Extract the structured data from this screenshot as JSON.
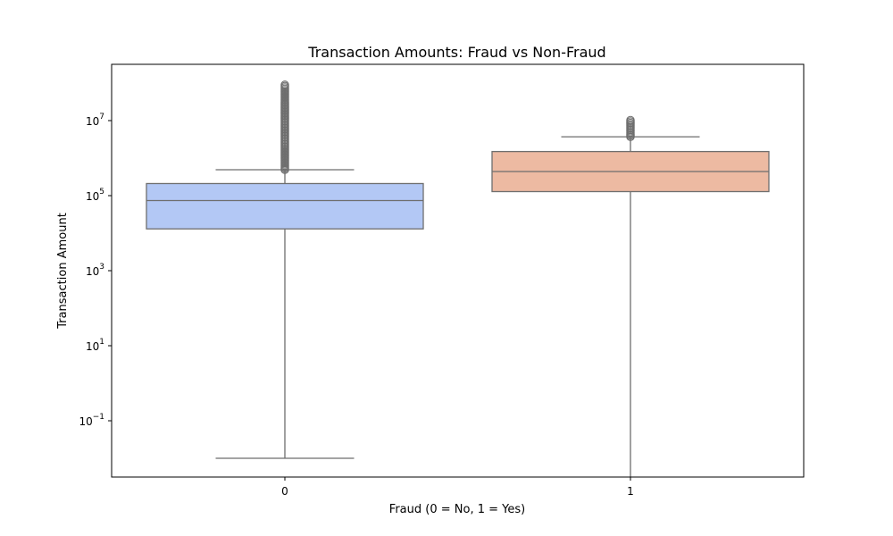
{
  "chart_data": {
    "type": "box",
    "title": "Transaction Amounts: Fraud vs Non-Fraud",
    "xlabel": "Fraud (0 = No, 1 = Yes)",
    "ylabel": "Transaction Amount",
    "yscale": "log",
    "ylim": [
      0.0025,
      3000000000
    ],
    "yticks": [
      {
        "value": 0.1,
        "base": "10",
        "exp": "−1"
      },
      {
        "value": 10,
        "base": "10",
        "exp": "1"
      },
      {
        "value": 1000,
        "base": "10",
        "exp": "3"
      },
      {
        "value": 100000,
        "base": "10",
        "exp": "5"
      },
      {
        "value": 10000000,
        "base": "10",
        "exp": "7"
      }
    ],
    "categories": [
      "0",
      "1"
    ],
    "grid": false,
    "series": [
      {
        "category": "0",
        "color": "#b3c8f5",
        "whisker_low": 0.01,
        "q1": 13000,
        "median": 74000,
        "q3": 210000,
        "whisker_high": 490000,
        "outliers_low": 490000,
        "outliers_high": 90000000
      },
      {
        "category": "1",
        "color": "#edbaa2",
        "whisker_low": 0,
        "q1": 128000,
        "median": 440000,
        "q3": 1500000,
        "whisker_high": 3700000,
        "outliers_low": 3700000,
        "outliers_high": 10300000
      }
    ],
    "edge_color": "#6e6e6e"
  }
}
